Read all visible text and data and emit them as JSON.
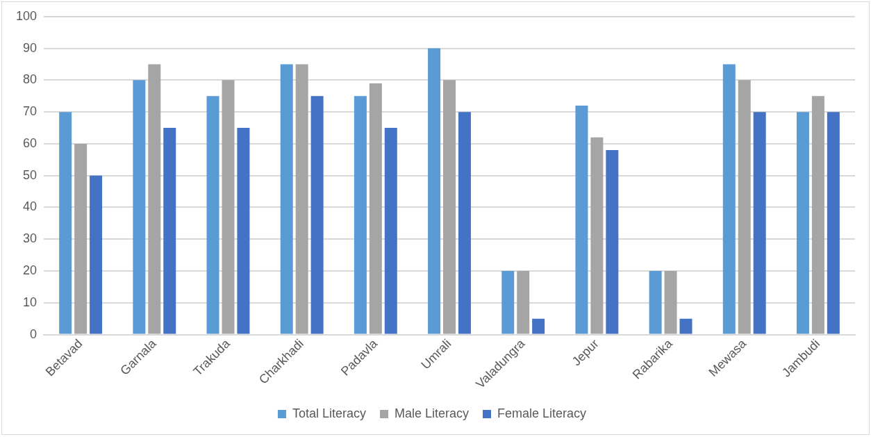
{
  "chart_data": {
    "type": "bar",
    "categories": [
      "Betavad",
      "Garnala",
      "Trakuda",
      "Charkhadi",
      "Padavla",
      "Umrali",
      "Valadungra",
      "Jepur",
      "Rabarika",
      "Mewasa",
      "Jambudi"
    ],
    "series": [
      {
        "name": "Total Literacy",
        "color": "#5b9bd5",
        "values": [
          70,
          80,
          75,
          85,
          75,
          90,
          20,
          72,
          20,
          85,
          70
        ]
      },
      {
        "name": "Male Literacy",
        "color": "#a5a5a5",
        "values": [
          60,
          85,
          80,
          85,
          79,
          80,
          20,
          62,
          20,
          80,
          75
        ]
      },
      {
        "name": "Female Literacy",
        "color": "#4472c4",
        "values": [
          50,
          65,
          65,
          75,
          65,
          70,
          5,
          58,
          5,
          70,
          70
        ]
      }
    ],
    "ylim": [
      0,
      100
    ],
    "yticks": [
      0,
      10,
      20,
      30,
      40,
      50,
      60,
      70,
      80,
      90,
      100
    ],
    "grid": "y",
    "legend": "bottom"
  }
}
